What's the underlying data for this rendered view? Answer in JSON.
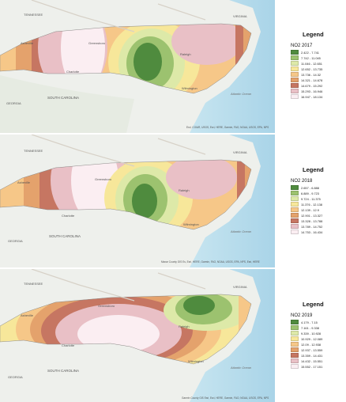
{
  "panels": [
    {
      "legend_title": "Legend",
      "layer_name": "NO2 2017",
      "classes": [
        {
          "label": "2.422 - 7.741",
          "color": "#4f8b3e"
        },
        {
          "label": "7.742 - 11.045",
          "color": "#9cc26f"
        },
        {
          "label": "11.046 - 12.651",
          "color": "#dde9a8"
        },
        {
          "label": "12.652 - 13.735",
          "color": "#f7e79a"
        },
        {
          "label": "13.736 - 14.32",
          "color": "#f6c788"
        },
        {
          "label": "14.321 - 14.678",
          "color": "#e4a26c"
        },
        {
          "label": "14.679 - 15.292",
          "color": "#c67662"
        },
        {
          "label": "15.293 - 16.946",
          "color": "#e9c0c6"
        },
        {
          "label": "16.947 - 18.134",
          "color": "#fbeef2"
        }
      ],
      "map_labels": {
        "place1": "Greensboro",
        "place2": "Raleigh",
        "place3": "Wilmington",
        "place4": "Charlotte",
        "place5": "Asheville",
        "state1": "VIRGINIA",
        "state2": "SOUTH CAROLINA",
        "state3": "GEORGIA",
        "state4": "TENNESSEE",
        "water": "Atlantic Ocean"
      },
      "attribution": "Esri, CGIAR, USGS, Esri, HERE, Garmin, FAO, NOAA, USGS, EPA, NPS"
    },
    {
      "legend_title": "Legend",
      "layer_name": "NO2 2018",
      "classes": [
        {
          "label": "2.657 - 6.888",
          "color": "#4f8b3e"
        },
        {
          "label": "6.889 - 9.723",
          "color": "#9cc26f"
        },
        {
          "label": "9.724 - 11.375",
          "color": "#dde9a8"
        },
        {
          "label": "11.376 - 12.138",
          "color": "#f7e79a"
        },
        {
          "label": "12.139 - 12.9",
          "color": "#f6c788"
        },
        {
          "label": "12.901 - 13.327",
          "color": "#e4a26c"
        },
        {
          "label": "13.328 - 13.788",
          "color": "#c67662"
        },
        {
          "label": "13.789 - 14.752",
          "color": "#e9c0c6"
        },
        {
          "label": "14.753 - 16.434",
          "color": "#fbeef2"
        }
      ],
      "map_labels": {
        "place1": "Greensboro",
        "place2": "Raleigh",
        "place3": "Wilmington",
        "place4": "Charlotte",
        "place5": "Asheville",
        "state1": "VIRGINIA",
        "state2": "SOUTH CAROLINA",
        "state3": "GEORGIA",
        "state4": "TENNESSEE",
        "water": "Atlantic Ocean"
      },
      "attribution": "Maxar County GIS Es, Esri, HERE, Garmin, FAO, NOAA, USGS, EPA, NPS, Esri, HERE"
    },
    {
      "legend_title": "Legend",
      "layer_name": "NO2 2019",
      "classes": [
        {
          "label": "4.179 - 7.15",
          "color": "#4f8b3e"
        },
        {
          "label": "7.161 - 9.338",
          "color": "#9cc26f"
        },
        {
          "label": "9.339 - 10.928",
          "color": "#dde9a8"
        },
        {
          "label": "10.929 - 12.089",
          "color": "#f7e79a"
        },
        {
          "label": "12.09 - 12.938",
          "color": "#f6c788"
        },
        {
          "label": "12.937 - 13.559",
          "color": "#e4a26c"
        },
        {
          "label": "13.359 - 14.431",
          "color": "#c67662"
        },
        {
          "label": "14.432 - 15.551",
          "color": "#e9c0c6"
        },
        {
          "label": "15.552 - 17.151",
          "color": "#fbeef2"
        }
      ],
      "map_labels": {
        "place1": "Greensboro",
        "place2": "Raleigh",
        "place3": "Wilmington",
        "place4": "Charlotte",
        "place5": "Asheville",
        "state1": "VIRGINIA",
        "state2": "SOUTH CAROLINA",
        "state3": "GEORGIA",
        "state4": "TENNESSEE",
        "water": "Atlantic Ocean"
      },
      "attribution": "Garmin County GIS Esri, Esri, HERE, Garmin, FAO, NOAA, USGS, EPA, NPS"
    }
  ]
}
